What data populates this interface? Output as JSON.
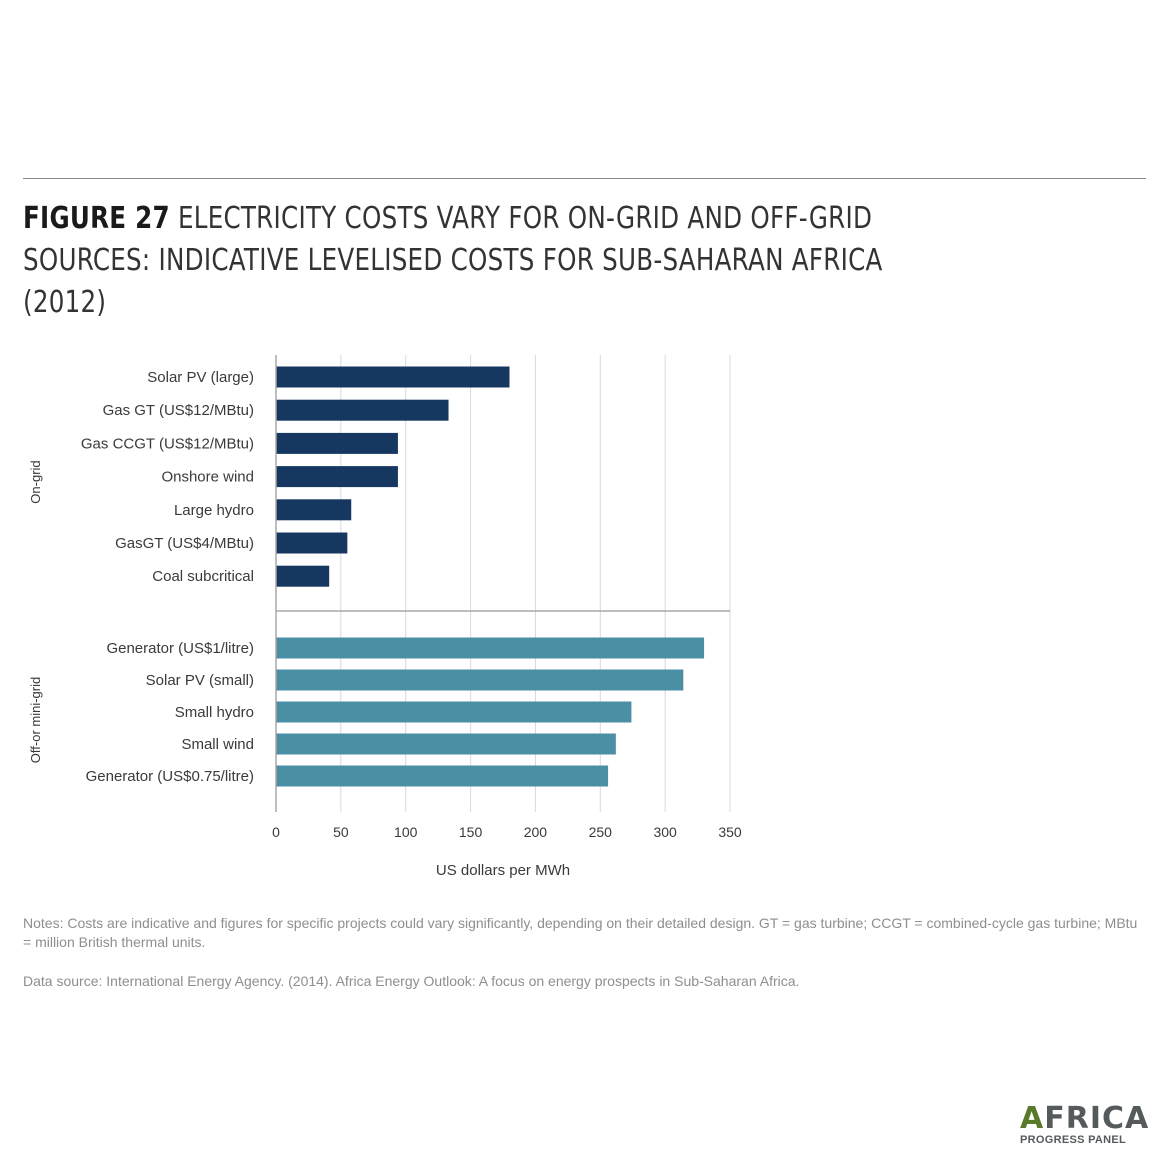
{
  "title": {
    "figure": "FIGURE 27",
    "text": " ELECTRICITY COSTS VARY FOR ON-GRID AND OFF-GRID SOURCES: INDICATIVE LEVELISED COSTS FOR SUB-SAHARAN AFRICA (2012)"
  },
  "colors": {
    "on_grid": "#163860",
    "off_grid": "#4a8fa3",
    "grid": "#d9d9d9",
    "axis": "#a8a8a8"
  },
  "chart_data": {
    "type": "bar",
    "orientation": "horizontal",
    "xlabel": "US dollars per MWh",
    "xlim": [
      0,
      350
    ],
    "xticks": [
      0,
      50,
      100,
      150,
      200,
      250,
      300,
      350
    ],
    "grid": true,
    "groups": [
      {
        "name": "On-grid",
        "categories": [
          "Solar PV (large)",
          "Gas GT (US$12/MBtu)",
          "Gas CCGT (US$12/MBtu)",
          "Onshore wind",
          "Large hydro",
          "GasGT (US$4/MBtu)",
          "Coal subcritical"
        ],
        "values": [
          180,
          133,
          94,
          94,
          58,
          55,
          41
        ]
      },
      {
        "name": "Off-or mini-grid",
        "categories": [
          "Generator (US$1/litre)",
          "Solar PV (small)",
          "Small hydro",
          "Small wind",
          "Generator (US$0.75/litre)"
        ],
        "values": [
          330,
          314,
          274,
          262,
          256
        ]
      }
    ]
  },
  "notes": "Notes: Costs are indicative and figures for specific projects could vary significantly, depending on their detailed design. GT = gas turbine; CCGT = combined-cycle gas turbine; MBtu = million British thermal units.",
  "source": "Data source: International Energy Agency. (2014). Africa Energy Outlook: A focus on energy prospects in Sub-Saharan Africa.",
  "logo": {
    "lead": "A",
    "main": "FRICA",
    "sub": "PROGRESS PANEL"
  }
}
